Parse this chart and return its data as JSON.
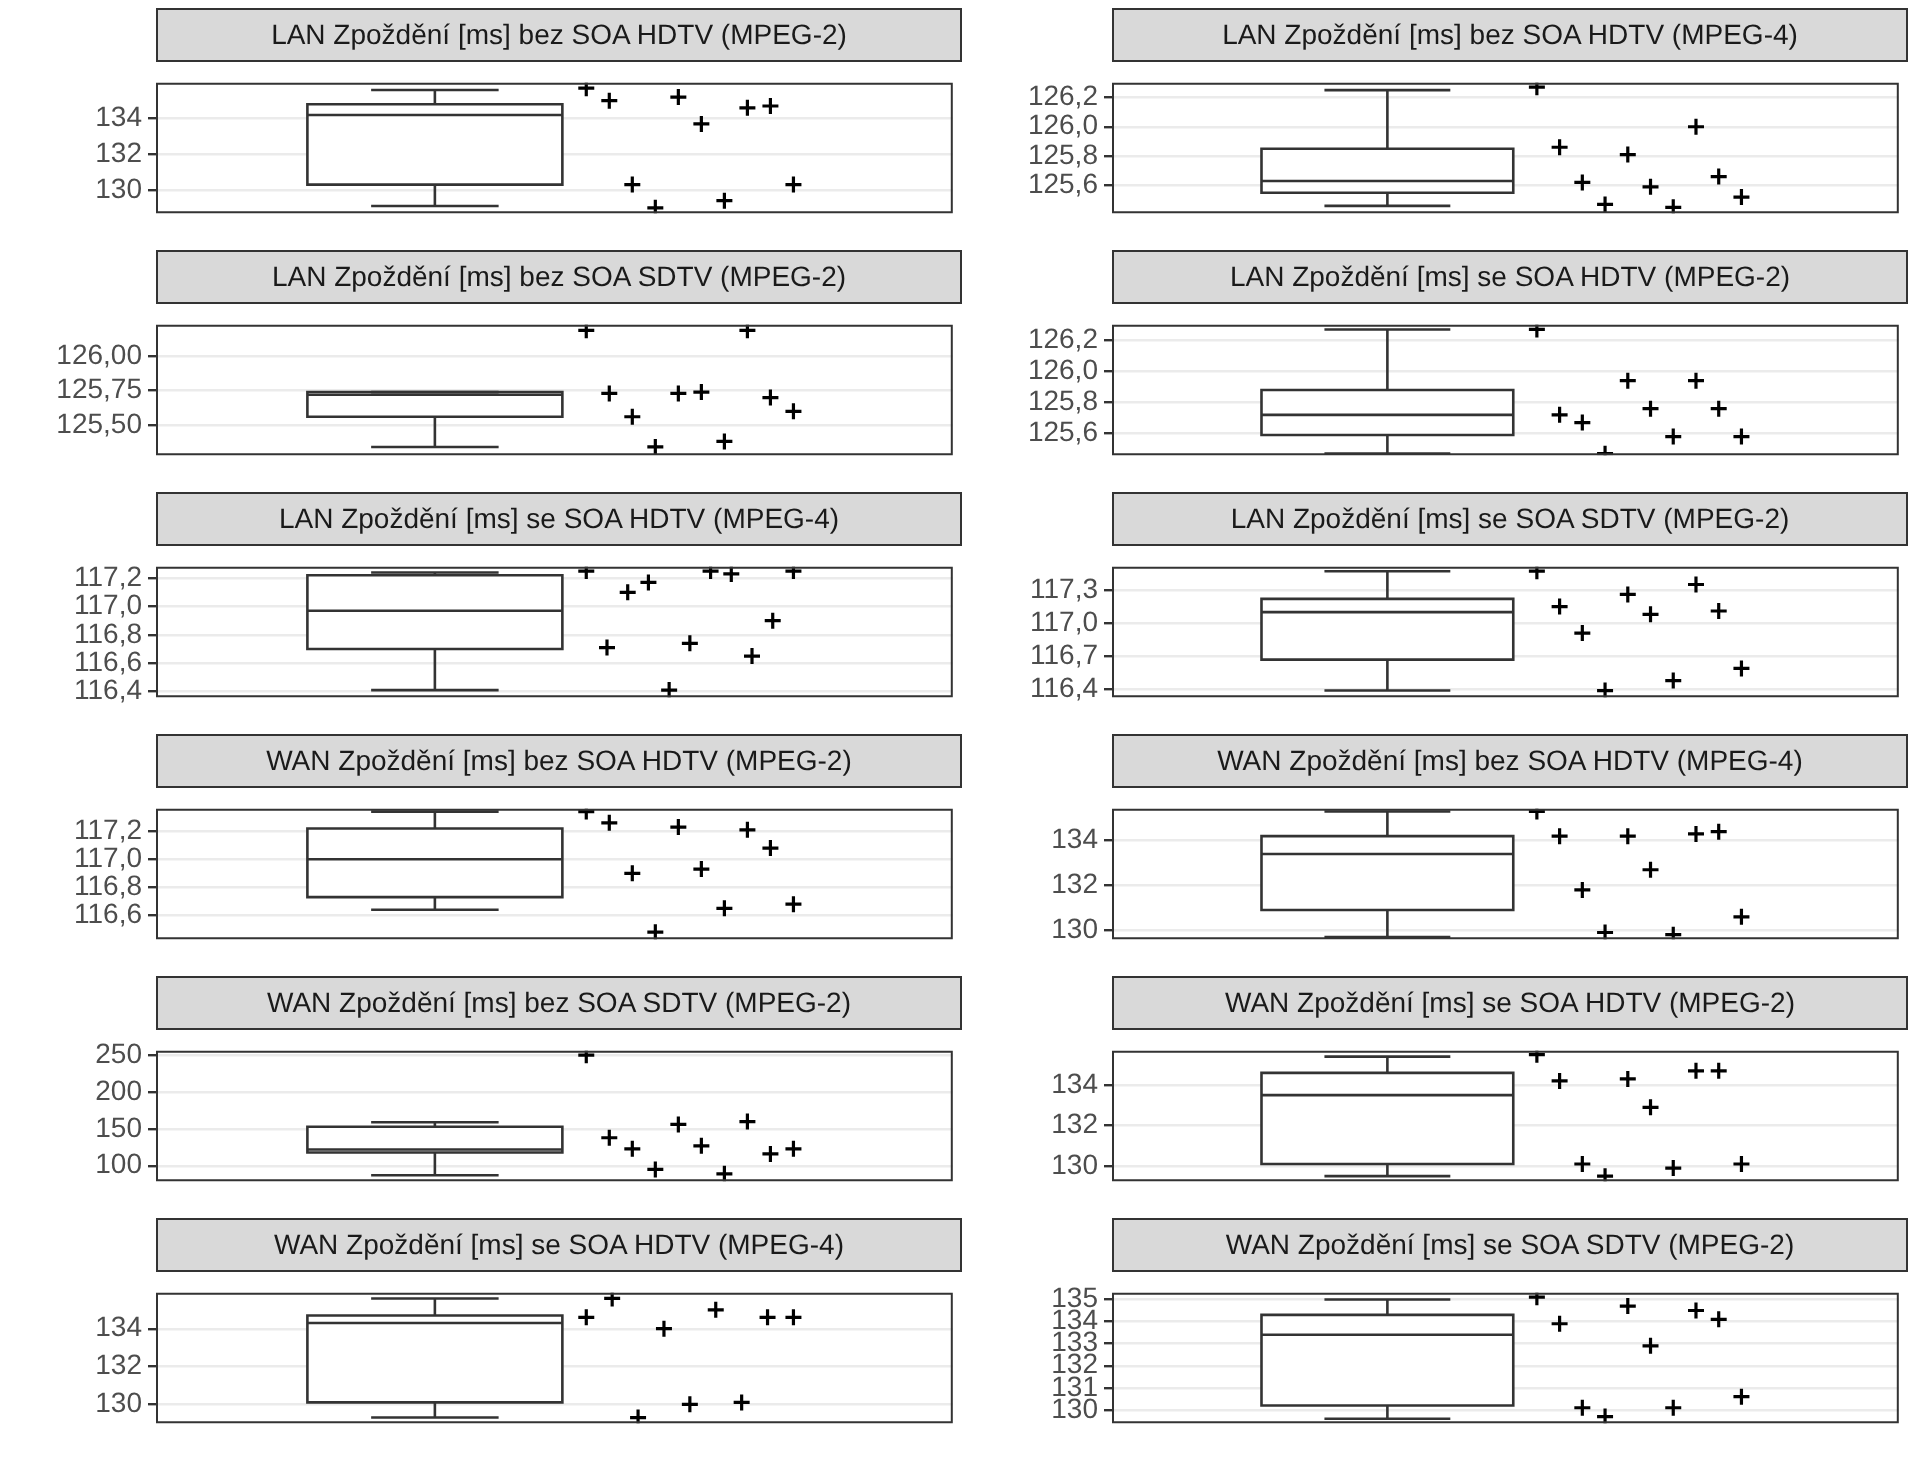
{
  "chart_data": [
    {
      "type": "box",
      "title": "LAN Zpoždění [ms] bez SOA HDTV (MPEG-2)",
      "categories": [
        null
      ],
      "ylim": [
        128.7,
        136
      ],
      "yticks": [
        130,
        132,
        134
      ],
      "tick_labels": "y",
      "grid": "y",
      "series": [
        {
          "type": "box",
          "color": "#ffffff",
          "boxes": [
            {
              "low": 129.1,
              "q1": 130.3,
              "median": 134.2,
              "q3": 134.8,
              "high": 135.6
            }
          ]
        },
        {
          "type": "scatter",
          "color": "#000000",
          "marker": "cross",
          "x": [
            null,
            null,
            null,
            null,
            null,
            null,
            null,
            null,
            null,
            null
          ],
          "values": [
            135.7,
            134.6,
            135.2,
            135.0,
            134.7,
            133.7,
            130.3,
            130.3,
            129.4,
            129.0
          ]
        }
      ]
    },
    {
      "type": "box",
      "title": "LAN Zpoždění [ms] bez SOA HDTV (MPEG-4)",
      "categories": [
        null
      ],
      "ylim": [
        125.41,
        126.3
      ],
      "yticks": [
        {
          "value": 125.6,
          "label": "125,6"
        },
        {
          "value": 125.8,
          "label": "125,8"
        },
        {
          "value": 126.0,
          "label": "126,0"
        },
        {
          "value": 126.2,
          "label": "126,2"
        }
      ],
      "tick_labels": "y",
      "grid": "y",
      "series": [
        {
          "type": "box",
          "color": "#ffffff",
          "boxes": [
            {
              "low": 125.46,
              "q1": 125.55,
              "median": 125.63,
              "q3": 125.85,
              "high": 126.25
            }
          ]
        },
        {
          "type": "scatter",
          "color": "#000000",
          "marker": "cross",
          "x": [
            null,
            null,
            null,
            null,
            null,
            null,
            null,
            null,
            null,
            null
          ],
          "values": [
            126.27,
            126.0,
            125.81,
            125.86,
            125.66,
            125.59,
            125.62,
            125.52,
            125.45,
            125.47
          ]
        }
      ]
    },
    {
      "type": "box",
      "title": "LAN Zpoždění [ms] bez SOA SDTV (MPEG-2)",
      "categories": [
        null
      ],
      "ylim": [
        125.28,
        126.23
      ],
      "yticks": [
        {
          "value": 125.5,
          "label": "125,50"
        },
        {
          "value": 125.75,
          "label": "125,75"
        },
        {
          "value": 126.0,
          "label": "126,00"
        }
      ],
      "tick_labels": "y",
      "grid": "y",
      "series": [
        {
          "type": "box",
          "color": "#ffffff",
          "boxes": [
            {
              "low": 125.34,
              "q1": 125.56,
              "median": 125.72,
              "q3": 125.74,
              "high": 125.74
            }
          ]
        },
        {
          "type": "scatter",
          "color": "#000000",
          "marker": "cross",
          "x": [
            null,
            null,
            null,
            null,
            null,
            null,
            null,
            null,
            null,
            null
          ],
          "values": [
            126.19,
            126.19,
            125.73,
            125.73,
            125.7,
            125.74,
            125.56,
            125.6,
            125.38,
            125.34
          ]
        }
      ]
    },
    {
      "type": "box",
      "title": "LAN Zpoždění [ms] se SOA HDTV (MPEG-2)",
      "categories": [
        null
      ],
      "ylim": [
        125.46,
        126.3
      ],
      "yticks": [
        {
          "value": 125.6,
          "label": "125,6"
        },
        {
          "value": 125.8,
          "label": "125,8"
        },
        {
          "value": 126.0,
          "label": "126,0"
        },
        {
          "value": 126.2,
          "label": "126,2"
        }
      ],
      "tick_labels": "y",
      "grid": "y",
      "series": [
        {
          "type": "box",
          "color": "#ffffff",
          "boxes": [
            {
              "low": 125.47,
              "q1": 125.59,
              "median": 125.72,
              "q3": 125.88,
              "high": 126.27
            }
          ]
        },
        {
          "type": "scatter",
          "color": "#000000",
          "marker": "cross",
          "x": [
            null,
            null,
            null,
            null,
            null,
            null,
            null,
            null,
            null,
            null
          ],
          "values": [
            126.27,
            125.94,
            125.94,
            125.72,
            125.76,
            125.76,
            125.67,
            125.58,
            125.58,
            125.47
          ]
        }
      ]
    },
    {
      "type": "box",
      "title": "LAN Zpoždění [ms] se SOA HDTV (MPEG-4)",
      "categories": [
        null
      ],
      "ylim": [
        116.36,
        117.28
      ],
      "yticks": [
        {
          "value": 116.4,
          "label": "116,4"
        },
        {
          "value": 116.6,
          "label": "116,6"
        },
        {
          "value": 116.8,
          "label": "116,8"
        },
        {
          "value": 117.0,
          "label": "117,0"
        },
        {
          "value": 117.2,
          "label": "117,2"
        }
      ],
      "tick_labels": "y",
      "grid": "y",
      "series": [
        {
          "type": "box",
          "color": "#ffffff",
          "boxes": [
            {
              "low": 116.41,
              "q1": 116.7,
              "median": 116.97,
              "q3": 117.22,
              "high": 117.24
            }
          ]
        },
        {
          "type": "scatter",
          "color": "#000000",
          "marker": "cross",
          "x": [
            null,
            null,
            null,
            null,
            null,
            null,
            null,
            null,
            null,
            null,
            null
          ],
          "values": [
            117.25,
            117.23,
            117.17,
            117.25,
            117.25,
            117.1,
            116.9,
            116.74,
            116.71,
            116.65,
            116.41
          ]
        }
      ]
    },
    {
      "type": "box",
      "title": "LAN Zpoždění [ms] se SOA SDTV (MPEG-2)",
      "categories": [
        null
      ],
      "ylim": [
        116.33,
        117.51
      ],
      "yticks": [
        {
          "value": 116.4,
          "label": "116,4"
        },
        {
          "value": 116.7,
          "label": "116,7"
        },
        {
          "value": 117.0,
          "label": "117,0"
        },
        {
          "value": 117.3,
          "label": "117,3"
        }
      ],
      "tick_labels": "y",
      "grid": "y",
      "series": [
        {
          "type": "box",
          "color": "#ffffff",
          "boxes": [
            {
              "low": 116.39,
              "q1": 116.67,
              "median": 117.1,
              "q3": 117.22,
              "high": 117.47
            }
          ]
        },
        {
          "type": "scatter",
          "color": "#000000",
          "marker": "cross",
          "x": [
            null,
            null,
            null,
            null,
            null,
            null,
            null,
            null,
            null,
            null
          ],
          "values": [
            117.47,
            117.35,
            117.26,
            117.15,
            117.11,
            117.08,
            116.91,
            116.59,
            116.48,
            116.39
          ]
        }
      ]
    },
    {
      "type": "box",
      "title": "WAN Zpoždění [ms] bez SOA HDTV (MPEG-2)",
      "categories": [
        null
      ],
      "ylim": [
        116.43,
        117.36
      ],
      "yticks": [
        {
          "value": 116.6,
          "label": "116,6"
        },
        {
          "value": 116.8,
          "label": "116,8"
        },
        {
          "value": 117.0,
          "label": "117,0"
        },
        {
          "value": 117.2,
          "label": "117,2"
        }
      ],
      "tick_labels": "y",
      "grid": "y",
      "series": [
        {
          "type": "box",
          "color": "#ffffff",
          "boxes": [
            {
              "low": 116.64,
              "q1": 116.73,
              "median": 117.0,
              "q3": 117.22,
              "high": 117.34
            }
          ]
        },
        {
          "type": "scatter",
          "color": "#000000",
          "marker": "cross",
          "x": [
            null,
            null,
            null,
            null,
            null,
            null,
            null,
            null,
            null,
            null
          ],
          "values": [
            117.34,
            117.21,
            117.23,
            117.26,
            117.08,
            116.93,
            116.9,
            116.68,
            116.65,
            116.48
          ]
        }
      ]
    },
    {
      "type": "box",
      "title": "WAN Zpoždění [ms] bez SOA HDTV (MPEG-4)",
      "categories": [
        null
      ],
      "ylim": [
        129.6,
        135.42
      ],
      "yticks": [
        130,
        132,
        134
      ],
      "tick_labels": "y",
      "grid": "y",
      "series": [
        {
          "type": "box",
          "color": "#ffffff",
          "boxes": [
            {
              "low": 129.7,
              "q1": 130.9,
              "median": 133.4,
              "q3": 134.2,
              "high": 135.3
            }
          ]
        },
        {
          "type": "scatter",
          "color": "#000000",
          "marker": "cross",
          "x": [
            null,
            null,
            null,
            null,
            null,
            null,
            null,
            null,
            null,
            null
          ],
          "values": [
            135.3,
            134.3,
            134.2,
            134.2,
            134.4,
            132.7,
            131.8,
            130.6,
            129.8,
            129.9
          ]
        }
      ]
    },
    {
      "type": "box",
      "title": "WAN Zpoždění [ms] bez SOA SDTV (MPEG-2)",
      "categories": [
        null
      ],
      "ylim": [
        79,
        256
      ],
      "yticks": [
        100,
        150,
        200,
        250
      ],
      "tick_labels": "y",
      "grid": "y",
      "series": [
        {
          "type": "box",
          "color": "#ffffff",
          "boxes": [
            {
              "low": 87,
              "q1": 118,
              "median": 122,
              "q3": 153,
              "high": 159
            }
          ]
        },
        {
          "type": "scatter",
          "color": "#000000",
          "marker": "cross",
          "x": [
            null,
            null,
            null,
            null,
            null,
            null,
            null,
            null,
            null,
            null
          ],
          "values": [
            250,
            160,
            156,
            138,
            116,
            127,
            123,
            123,
            89,
            95
          ]
        }
      ]
    },
    {
      "type": "box",
      "title": "WAN Zpoždění [ms] se SOA HDTV (MPEG-2)",
      "categories": [
        null
      ],
      "ylim": [
        129.25,
        135.69
      ],
      "yticks": [
        130,
        132,
        134
      ],
      "tick_labels": "y",
      "grid": "y",
      "series": [
        {
          "type": "box",
          "color": "#ffffff",
          "boxes": [
            {
              "low": 129.5,
              "q1": 130.1,
              "median": 133.5,
              "q3": 134.6,
              "high": 135.4
            }
          ]
        },
        {
          "type": "scatter",
          "color": "#000000",
          "marker": "cross",
          "x": [
            null,
            null,
            null,
            null,
            null,
            null,
            null,
            null,
            null,
            null
          ],
          "values": [
            135.5,
            134.7,
            134.3,
            134.2,
            134.7,
            132.9,
            130.1,
            130.1,
            129.9,
            129.5
          ]
        }
      ]
    },
    {
      "type": "box",
      "title": "WAN Zpoždění [ms] se SOA HDTV (MPEG-4)",
      "categories": [
        null
      ],
      "ylim": [
        129.0,
        135.9
      ],
      "yticks": [
        130,
        132,
        134
      ],
      "tick_labels": "y",
      "grid": "y",
      "series": [
        {
          "type": "box",
          "color": "#ffffff",
          "boxes": [
            {
              "low": 129.3,
              "q1": 130.1,
              "median": 134.3,
              "q3": 134.7,
              "high": 135.6
            }
          ]
        },
        {
          "type": "scatter",
          "color": "#000000",
          "marker": "cross",
          "x": [
            null,
            null,
            null,
            null,
            null,
            null,
            null,
            null,
            null
          ],
          "values": [
            134.6,
            134.6,
            135.0,
            134.0,
            135.6,
            134.6,
            130.1,
            130.0,
            129.3
          ]
        }
      ]
    },
    {
      "type": "box",
      "title": "WAN Zpoždění [ms] se SOA SDTV (MPEG-2)",
      "categories": [
        null
      ],
      "ylim": [
        129.4,
        135.3
      ],
      "yticks": [
        130,
        131,
        132,
        133,
        134,
        135
      ],
      "tick_labels": "y",
      "grid": "y",
      "series": [
        {
          "type": "box",
          "color": "#ffffff",
          "boxes": [
            {
              "low": 129.6,
              "q1": 130.2,
              "median": 133.4,
              "q3": 134.3,
              "high": 135.0
            }
          ]
        },
        {
          "type": "scatter",
          "color": "#000000",
          "marker": "cross",
          "x": [
            null,
            null,
            null,
            null,
            null,
            null,
            null,
            null,
            null,
            null
          ],
          "values": [
            135.1,
            134.5,
            134.7,
            133.9,
            134.1,
            132.9,
            130.1,
            130.6,
            130.1,
            129.7
          ]
        }
      ]
    }
  ]
}
